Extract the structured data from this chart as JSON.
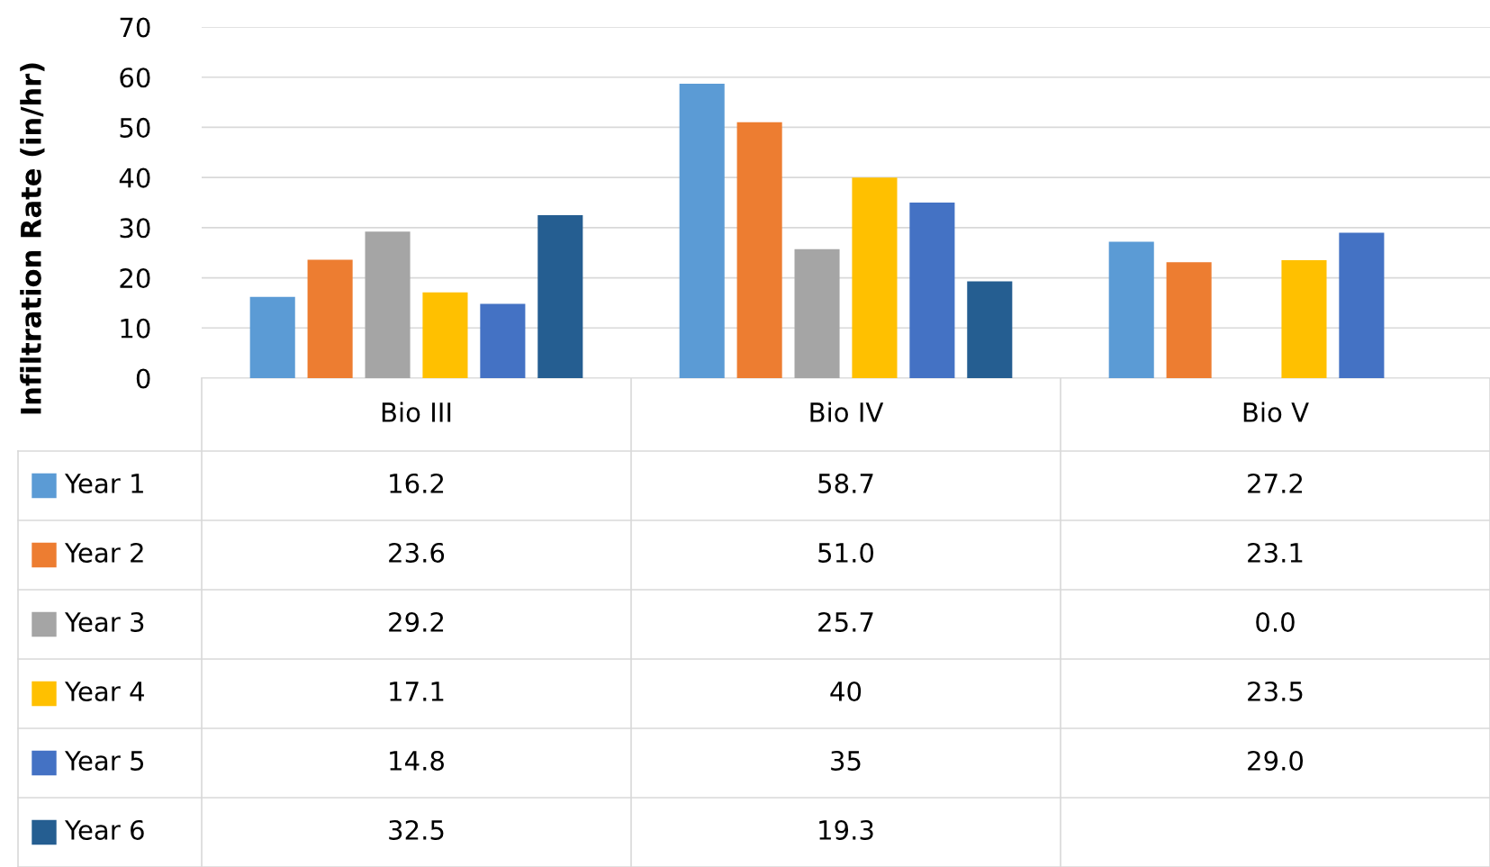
{
  "chart_data": {
    "type": "bar",
    "ylabel": "Infiltration Rate (in/hr)",
    "categories": [
      "Bio III",
      "Bio IV",
      "Bio V"
    ],
    "series": [
      {
        "name": "Year 1",
        "color": "#5b9bd5",
        "values": [
          16.2,
          58.7,
          27.2
        ],
        "value_labels": [
          "16.2",
          "58.7",
          "27.2"
        ]
      },
      {
        "name": "Year 2",
        "color": "#ed7d31",
        "values": [
          23.6,
          51.0,
          23.1
        ],
        "value_labels": [
          "23.6",
          "51.0",
          "23.1"
        ]
      },
      {
        "name": "Year 3",
        "color": "#a5a5a5",
        "values": [
          29.2,
          25.7,
          0.0
        ],
        "value_labels": [
          "29.2",
          "25.7",
          "0.0"
        ]
      },
      {
        "name": "Year 4",
        "color": "#ffc000",
        "values": [
          17.1,
          40,
          23.5
        ],
        "value_labels": [
          "17.1",
          "40",
          "23.5"
        ]
      },
      {
        "name": "Year 5",
        "color": "#4472c4",
        "values": [
          14.8,
          35,
          29.0
        ],
        "value_labels": [
          "14.8",
          "35",
          "29.0"
        ]
      },
      {
        "name": "Year 6",
        "color": "#255e91",
        "values": [
          32.5,
          19.3,
          null
        ],
        "value_labels": [
          "32.5",
          "19.3",
          null
        ]
      }
    ],
    "ylim": [
      0,
      70
    ],
    "yticks": [
      0,
      10,
      20,
      30,
      40,
      50,
      60,
      70
    ],
    "grid": "y",
    "legend": "bottom left"
  }
}
